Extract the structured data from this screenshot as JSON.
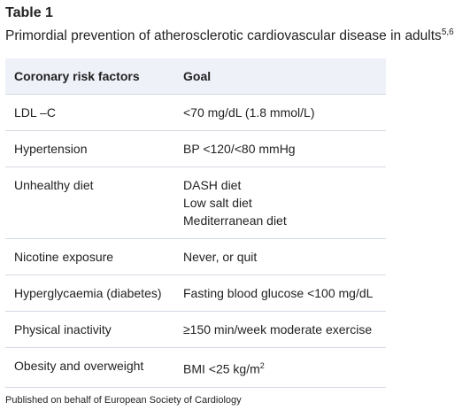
{
  "title": "Table 1",
  "caption": {
    "text": "Primordial prevention of atherosclerotic cardiovascular disease in adults",
    "sup": "5,6"
  },
  "table": {
    "header": [
      "Coronary risk factors",
      "Goal"
    ],
    "rows": [
      {
        "factor": "LDL –C",
        "goal": [
          "<70 mg/dL (1.8 mmol/L)"
        ]
      },
      {
        "factor": "Hypertension",
        "goal": [
          "BP <120/<80 mmHg"
        ]
      },
      {
        "factor": "Unhealthy diet",
        "goal": [
          "DASH diet",
          "Low salt diet",
          "Mediterranean diet"
        ]
      },
      {
        "factor": "Nicotine exposure",
        "goal": [
          "Never, or quit"
        ]
      },
      {
        "factor": "Hyperglycaemia (diabetes)",
        "goal": [
          "Fasting blood glucose <100 mg/dL"
        ]
      },
      {
        "factor": "Physical inactivity",
        "goal": [
          "≥150 min/week moderate exercise"
        ]
      },
      {
        "factor": "Obesity and overweight",
        "goal": [
          "BMI <25 kg/m"
        ],
        "sup": "2"
      }
    ]
  },
  "footer": "Published on behalf of European Society of Cardiology"
}
